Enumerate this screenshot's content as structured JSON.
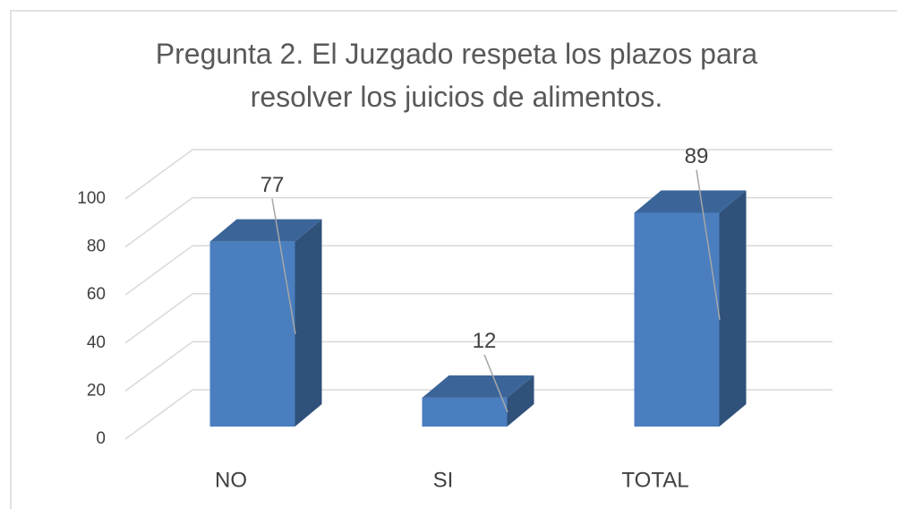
{
  "chart_data": {
    "type": "bar3d",
    "title": "Pregunta 2. El Juzgado respeta los plazos para resolver los juicios de alimentos.",
    "categories": [
      "NO",
      "SI",
      "TOTAL"
    ],
    "values": [
      77,
      12,
      89
    ],
    "color": "#4a7ebf",
    "ylim": [
      0,
      100
    ],
    "yticks": [
      0,
      20,
      40,
      60,
      80,
      100
    ],
    "grid": true
  }
}
